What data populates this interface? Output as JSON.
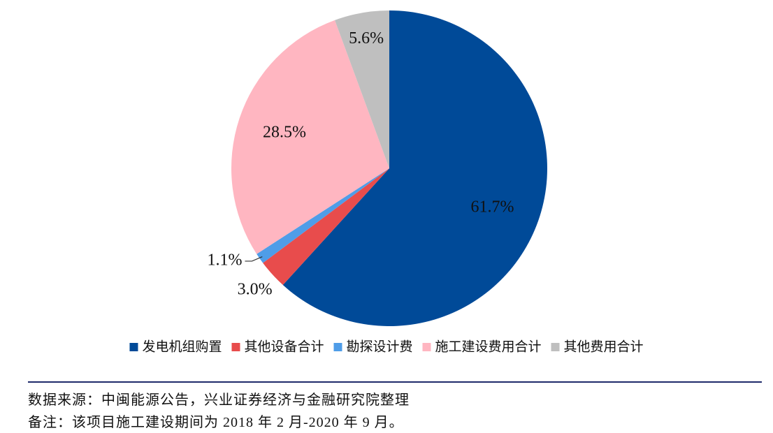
{
  "chart_data": {
    "type": "pie",
    "categories": [
      "发电机组购置",
      "其他设备合计",
      "勘探设计费",
      "施工建设费用合计",
      "其他费用合计"
    ],
    "values": [
      61.7,
      3.0,
      1.1,
      28.5,
      5.6
    ],
    "value_labels": [
      "61.7%",
      "3.0%",
      "1.1%",
      "28.5%",
      "5.6%"
    ],
    "colors": [
      "#004a98",
      "#e84c4c",
      "#4f9de8",
      "#ffb6c1",
      "#bfbfbf"
    ],
    "legend": "bottom"
  },
  "footnotes": {
    "source": "数据来源：中闽能源公告，兴业证券经济与金融研究院整理",
    "note": "备注：该项目施工建设期间为 2018 年 2 月-2020 年 9 月。"
  }
}
